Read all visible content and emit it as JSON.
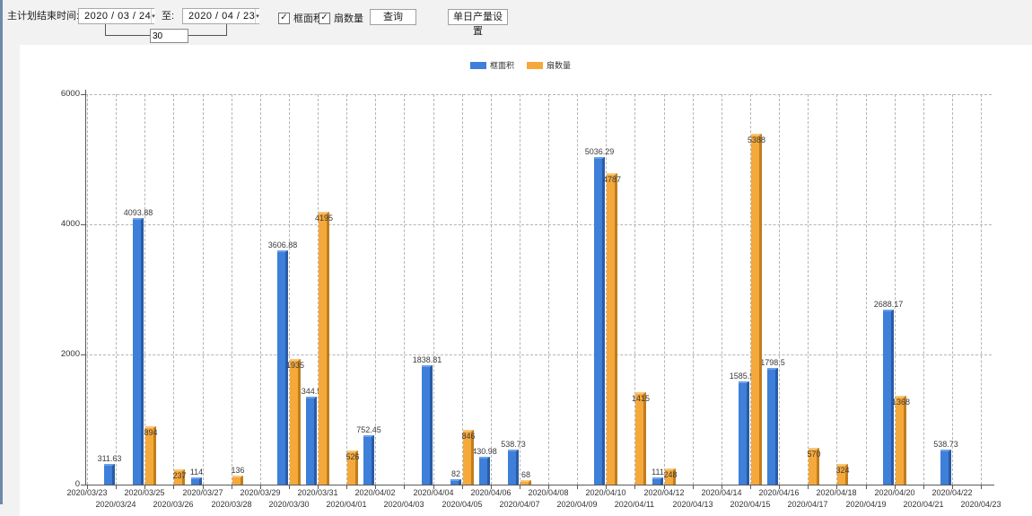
{
  "icons": {
    "chevron_down": "▾",
    "checkbox_check": "✓"
  },
  "toolbar": {
    "label_main": "主计划结束时间:",
    "date_from": "2020 / 03 / 24",
    "label_to": "至:",
    "date_to": "2020 / 04 / 23",
    "interval_value": "30",
    "checkbox_area": {
      "label": "框面积",
      "checked": true
    },
    "checkbox_fan": {
      "label": "扇数量",
      "checked": true
    },
    "query_button": "查询",
    "daily_output_button": "单日产量设置"
  },
  "chart_data": {
    "type": "bar",
    "title": "",
    "xlabel": "",
    "ylabel": "",
    "ylim": [
      0,
      6000
    ],
    "yticks": [
      0,
      2000,
      4000,
      6000
    ],
    "grid": "dashed-both",
    "legend_position": "top-center",
    "categories": [
      "2020/03/23",
      "2020/03/24",
      "2020/03/25",
      "2020/03/26",
      "2020/03/27",
      "2020/03/28",
      "2020/03/29",
      "2020/03/30",
      "2020/03/31",
      "2020/04/01",
      "2020/04/02",
      "2020/04/03",
      "2020/04/04",
      "2020/04/05",
      "2020/04/06",
      "2020/04/07",
      "2020/04/08",
      "2020/04/09",
      "2020/04/10",
      "2020/04/11",
      "2020/04/12",
      "2020/04/13",
      "2020/04/14",
      "2020/04/15",
      "2020/04/16",
      "2020/04/17",
      "2020/04/18",
      "2020/04/19",
      "2020/04/20",
      "2020/04/21",
      "2020/04/22",
      "2020/04/23"
    ],
    "series": [
      {
        "name": "框面积",
        "color": "#3E7FD9",
        "color_dark": "#2a5ba6",
        "color_light": "#6ba0e8",
        "values": [
          null,
          311.63,
          4093.88,
          null,
          114,
          null,
          null,
          3606.88,
          1344.95,
          null,
          752.45,
          null,
          1838.81,
          82,
          430.98,
          538.73,
          null,
          null,
          5036.29,
          null,
          111,
          null,
          null,
          1585.96,
          1798.5,
          null,
          null,
          null,
          2688.17,
          null,
          538.73,
          null
        ]
      },
      {
        "name": "扇数量",
        "color": "#F5A93B",
        "color_dark": "#c07d1c",
        "color_light": "#f8c879",
        "values": [
          null,
          null,
          894,
          237,
          null,
          136,
          null,
          1935,
          4195,
          526,
          null,
          null,
          null,
          846,
          null,
          68,
          null,
          null,
          4787,
          1415,
          248,
          null,
          null,
          5388,
          null,
          570,
          324,
          null,
          1368,
          null,
          null,
          null
        ]
      }
    ]
  }
}
